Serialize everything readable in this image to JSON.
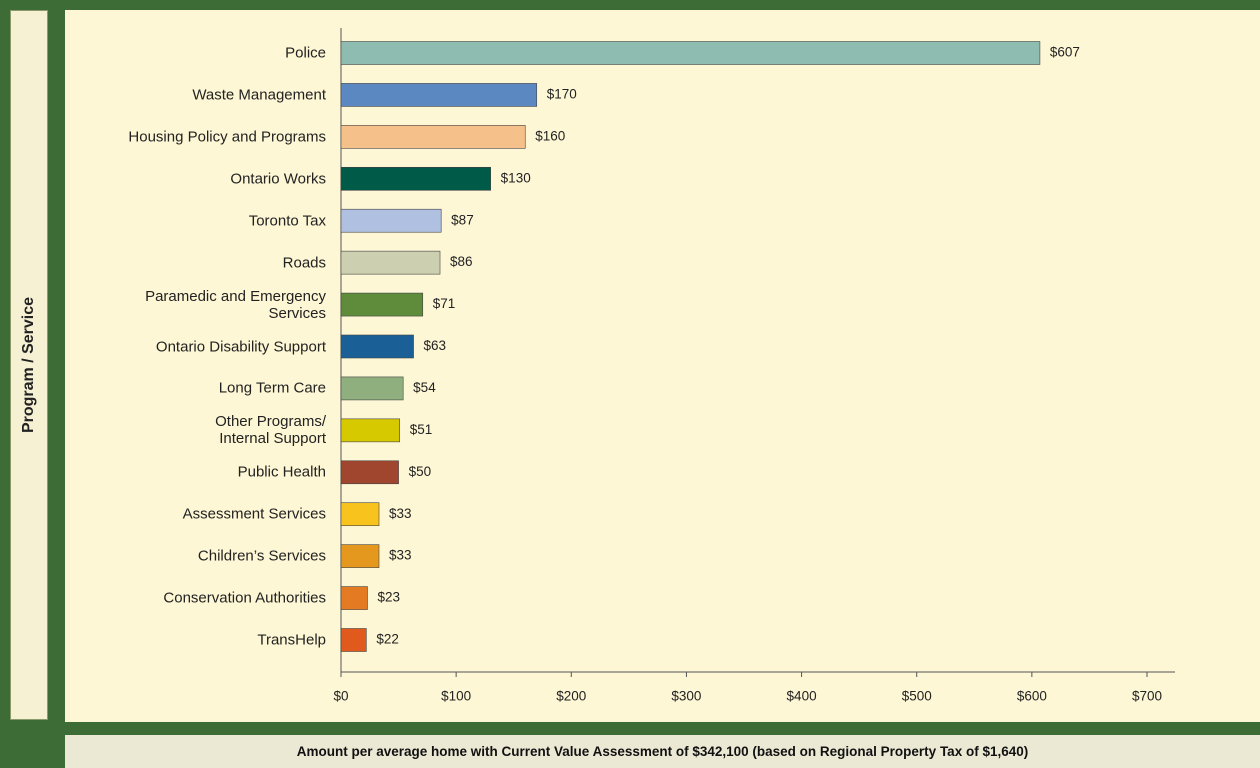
{
  "chart_data": {
    "type": "bar",
    "orientation": "horizontal",
    "y_label": "Program / Service",
    "x_label": "Amount per average home with Current Value Assessment of $342,100 (based on Regional Property Tax of $1,640)",
    "categories": [
      "Police",
      "Waste Management",
      "Housing Policy and Programs",
      "Ontario Works",
      "Toronto Tax",
      "Roads",
      "Paramedic and Emergency\nServices",
      "Ontario Disability Support",
      "Long Term Care",
      "Other Programs/\nInternal Support",
      "Public Health",
      "Assessment Services",
      "Children’s Services",
      "Conservation Authorities",
      "TransHelp"
    ],
    "values": [
      607,
      170,
      160,
      130,
      87,
      86,
      71,
      63,
      54,
      51,
      50,
      33,
      33,
      23,
      22
    ],
    "value_labels": [
      "$607",
      "$170",
      "$160",
      "$130",
      "$87",
      "$86",
      "$71",
      "$63",
      "$54",
      "$51",
      "$50",
      "$33",
      "$33",
      "$23",
      "$22"
    ],
    "colors": [
      "#8fbcb0",
      "#5b88c0",
      "#f5c08a",
      "#005a48",
      "#b0c0e0",
      "#cdd0b0",
      "#5e8c3a",
      "#1a6096",
      "#8fb07e",
      "#d7c900",
      "#a0452e",
      "#f7c31c",
      "#e4991e",
      "#e47a21",
      "#e05a1e"
    ],
    "xlim": [
      0,
      700
    ],
    "xticks": [
      {
        "value": 0,
        "label": "$0"
      },
      {
        "value": 100,
        "label": "$100"
      },
      {
        "value": 200,
        "label": "$200"
      },
      {
        "value": 300,
        "label": "$300"
      },
      {
        "value": 400,
        "label": "$400"
      },
      {
        "value": 500,
        "label": "$500"
      },
      {
        "value": 600,
        "label": "$600"
      },
      {
        "value": 700,
        "label": "$700"
      }
    ]
  }
}
